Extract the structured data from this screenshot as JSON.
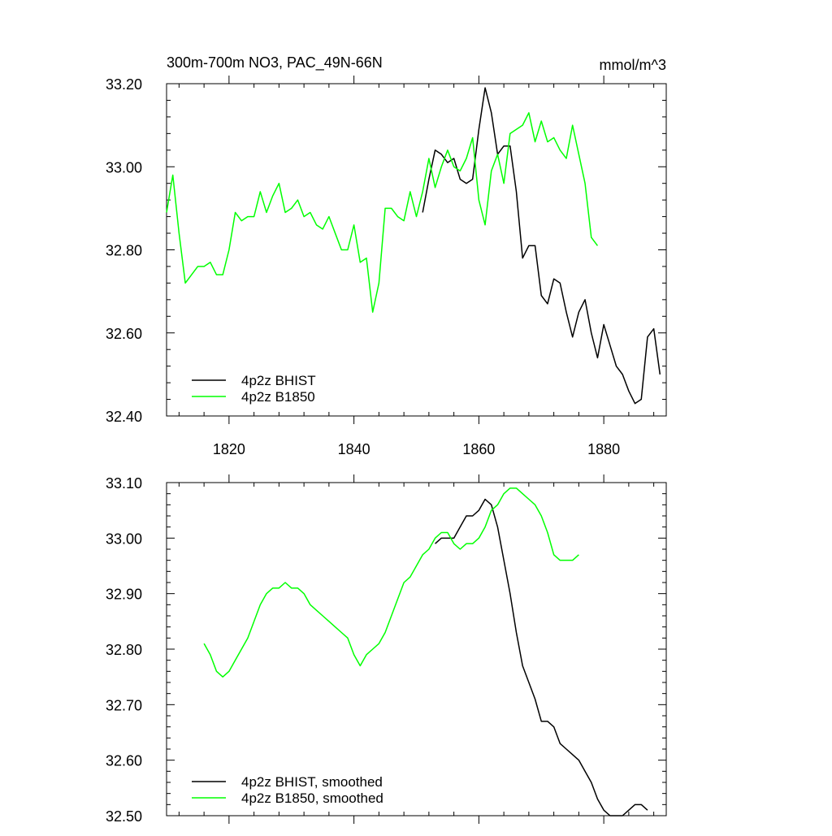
{
  "colors": {
    "bhist": "#000000",
    "b1850": "#00ff00",
    "frame": "#000000",
    "background": "#ffffff"
  },
  "chart_data": [
    {
      "type": "line",
      "title": "300m-700m NO3, PAC_49N-66N",
      "units": "mmol/m^3",
      "xlim": [
        1810,
        1890
      ],
      "ylim": [
        32.4,
        33.2
      ],
      "x_ticks": [
        1820,
        1840,
        1860,
        1880
      ],
      "x_tick_labels": [
        "1820",
        "1840",
        "1860",
        "1880"
      ],
      "y_ticks": [
        32.4,
        32.6,
        32.8,
        33.0,
        33.2
      ],
      "y_tick_labels": [
        "32.40",
        "32.60",
        "32.80",
        "33.00",
        "33.20"
      ],
      "legend_position": "bottom-left",
      "grid": false,
      "series": [
        {
          "name": "4p2z BHIST",
          "color": "#000000",
          "x": [
            1851,
            1852,
            1853,
            1854,
            1855,
            1856,
            1857,
            1858,
            1859,
            1860,
            1861,
            1862,
            1863,
            1864,
            1865,
            1866,
            1867,
            1868,
            1869,
            1870,
            1871,
            1872,
            1873,
            1874,
            1875,
            1876,
            1877,
            1878,
            1879,
            1880,
            1881,
            1882,
            1883,
            1884,
            1885,
            1886,
            1887,
            1888,
            1889
          ],
          "y": [
            32.89,
            32.97,
            33.04,
            33.03,
            33.01,
            33.02,
            32.97,
            32.96,
            32.97,
            33.09,
            33.19,
            33.13,
            33.03,
            33.05,
            33.05,
            32.94,
            32.78,
            32.81,
            32.81,
            32.69,
            32.67,
            32.73,
            32.72,
            32.65,
            32.59,
            32.65,
            32.68,
            32.6,
            32.54,
            32.62,
            32.57,
            32.52,
            32.5,
            32.46,
            32.43,
            32.44,
            32.59,
            32.61,
            32.5
          ]
        },
        {
          "name": "4p2z B1850",
          "color": "#00ff00",
          "x": [
            1810,
            1811,
            1812,
            1813,
            1814,
            1815,
            1816,
            1817,
            1818,
            1819,
            1820,
            1821,
            1822,
            1823,
            1824,
            1825,
            1826,
            1827,
            1828,
            1829,
            1830,
            1831,
            1832,
            1833,
            1834,
            1835,
            1836,
            1837,
            1838,
            1839,
            1840,
            1841,
            1842,
            1843,
            1844,
            1845,
            1846,
            1847,
            1848,
            1849,
            1850,
            1851,
            1852,
            1853,
            1854,
            1855,
            1856,
            1857,
            1858,
            1859,
            1860,
            1861,
            1862,
            1863,
            1864,
            1865,
            1866,
            1867,
            1868,
            1869,
            1870,
            1871,
            1872,
            1873,
            1874,
            1875,
            1876,
            1877,
            1878,
            1879
          ],
          "y": [
            32.89,
            32.98,
            32.84,
            32.72,
            32.74,
            32.76,
            32.76,
            32.77,
            32.74,
            32.74,
            32.8,
            32.89,
            32.87,
            32.88,
            32.88,
            32.94,
            32.89,
            32.93,
            32.96,
            32.89,
            32.9,
            32.92,
            32.88,
            32.89,
            32.86,
            32.85,
            32.88,
            32.84,
            32.8,
            32.8,
            32.86,
            32.77,
            32.78,
            32.65,
            32.72,
            32.9,
            32.9,
            32.88,
            32.87,
            32.94,
            32.88,
            32.94,
            33.02,
            32.95,
            33.0,
            33.04,
            33.0,
            32.99,
            33.02,
            33.07,
            32.92,
            32.86,
            32.99,
            33.03,
            32.96,
            33.08,
            33.09,
            33.1,
            33.13,
            33.06,
            33.11,
            33.06,
            33.07,
            33.04,
            33.02,
            33.1,
            33.03,
            32.96,
            32.83,
            32.81
          ]
        }
      ]
    },
    {
      "type": "line",
      "xlim": [
        1810,
        1890
      ],
      "ylim": [
        32.5,
        33.1
      ],
      "x_ticks": [
        1820,
        1840,
        1860,
        1880
      ],
      "y_ticks": [
        32.5,
        32.6,
        32.7,
        32.8,
        32.9,
        33.0,
        33.1
      ],
      "y_tick_labels": [
        "32.50",
        "32.60",
        "32.70",
        "32.80",
        "32.90",
        "33.00",
        "33.10"
      ],
      "legend_position": "bottom-left",
      "grid": false,
      "series": [
        {
          "name": "4p2z BHIST, smoothed",
          "color": "#000000",
          "x": [
            1853,
            1854,
            1855,
            1856,
            1857,
            1858,
            1859,
            1860,
            1861,
            1862,
            1863,
            1864,
            1865,
            1866,
            1867,
            1868,
            1869,
            1870,
            1871,
            1872,
            1873,
            1874,
            1875,
            1876,
            1877,
            1878,
            1879,
            1880,
            1881,
            1882,
            1883,
            1884,
            1885,
            1886,
            1887
          ],
          "y": [
            32.99,
            33.0,
            33.0,
            33.0,
            33.02,
            33.04,
            33.04,
            33.05,
            33.07,
            33.06,
            33.02,
            32.96,
            32.9,
            32.83,
            32.77,
            32.74,
            32.71,
            32.67,
            32.67,
            32.66,
            32.63,
            32.62,
            32.61,
            32.6,
            32.58,
            32.56,
            32.53,
            32.51,
            32.5,
            32.5,
            32.5,
            32.51,
            32.52,
            32.52,
            32.51
          ]
        },
        {
          "name": "4p2z B1850, smoothed",
          "color": "#00ff00",
          "x": [
            1816,
            1817,
            1818,
            1819,
            1820,
            1821,
            1822,
            1823,
            1824,
            1825,
            1826,
            1827,
            1828,
            1829,
            1830,
            1831,
            1832,
            1833,
            1834,
            1835,
            1836,
            1837,
            1838,
            1839,
            1840,
            1841,
            1842,
            1843,
            1844,
            1845,
            1846,
            1847,
            1848,
            1849,
            1850,
            1851,
            1852,
            1853,
            1854,
            1855,
            1856,
            1857,
            1858,
            1859,
            1860,
            1861,
            1862,
            1863,
            1864,
            1865,
            1866,
            1867,
            1868,
            1869,
            1870,
            1871,
            1872,
            1873,
            1874,
            1875,
            1876
          ],
          "y": [
            32.81,
            32.79,
            32.76,
            32.75,
            32.76,
            32.78,
            32.8,
            32.82,
            32.85,
            32.88,
            32.9,
            32.91,
            32.91,
            32.92,
            32.91,
            32.91,
            32.9,
            32.88,
            32.87,
            32.86,
            32.85,
            32.84,
            32.83,
            32.82,
            32.79,
            32.77,
            32.79,
            32.8,
            32.81,
            32.83,
            32.86,
            32.89,
            32.92,
            32.93,
            32.95,
            32.97,
            32.98,
            33.0,
            33.01,
            33.01,
            32.99,
            32.98,
            32.99,
            32.99,
            33.0,
            33.02,
            33.05,
            33.06,
            33.08,
            33.09,
            33.09,
            33.08,
            33.07,
            33.06,
            33.04,
            33.01,
            32.97,
            32.96,
            32.96,
            32.96,
            32.97
          ]
        }
      ]
    }
  ]
}
